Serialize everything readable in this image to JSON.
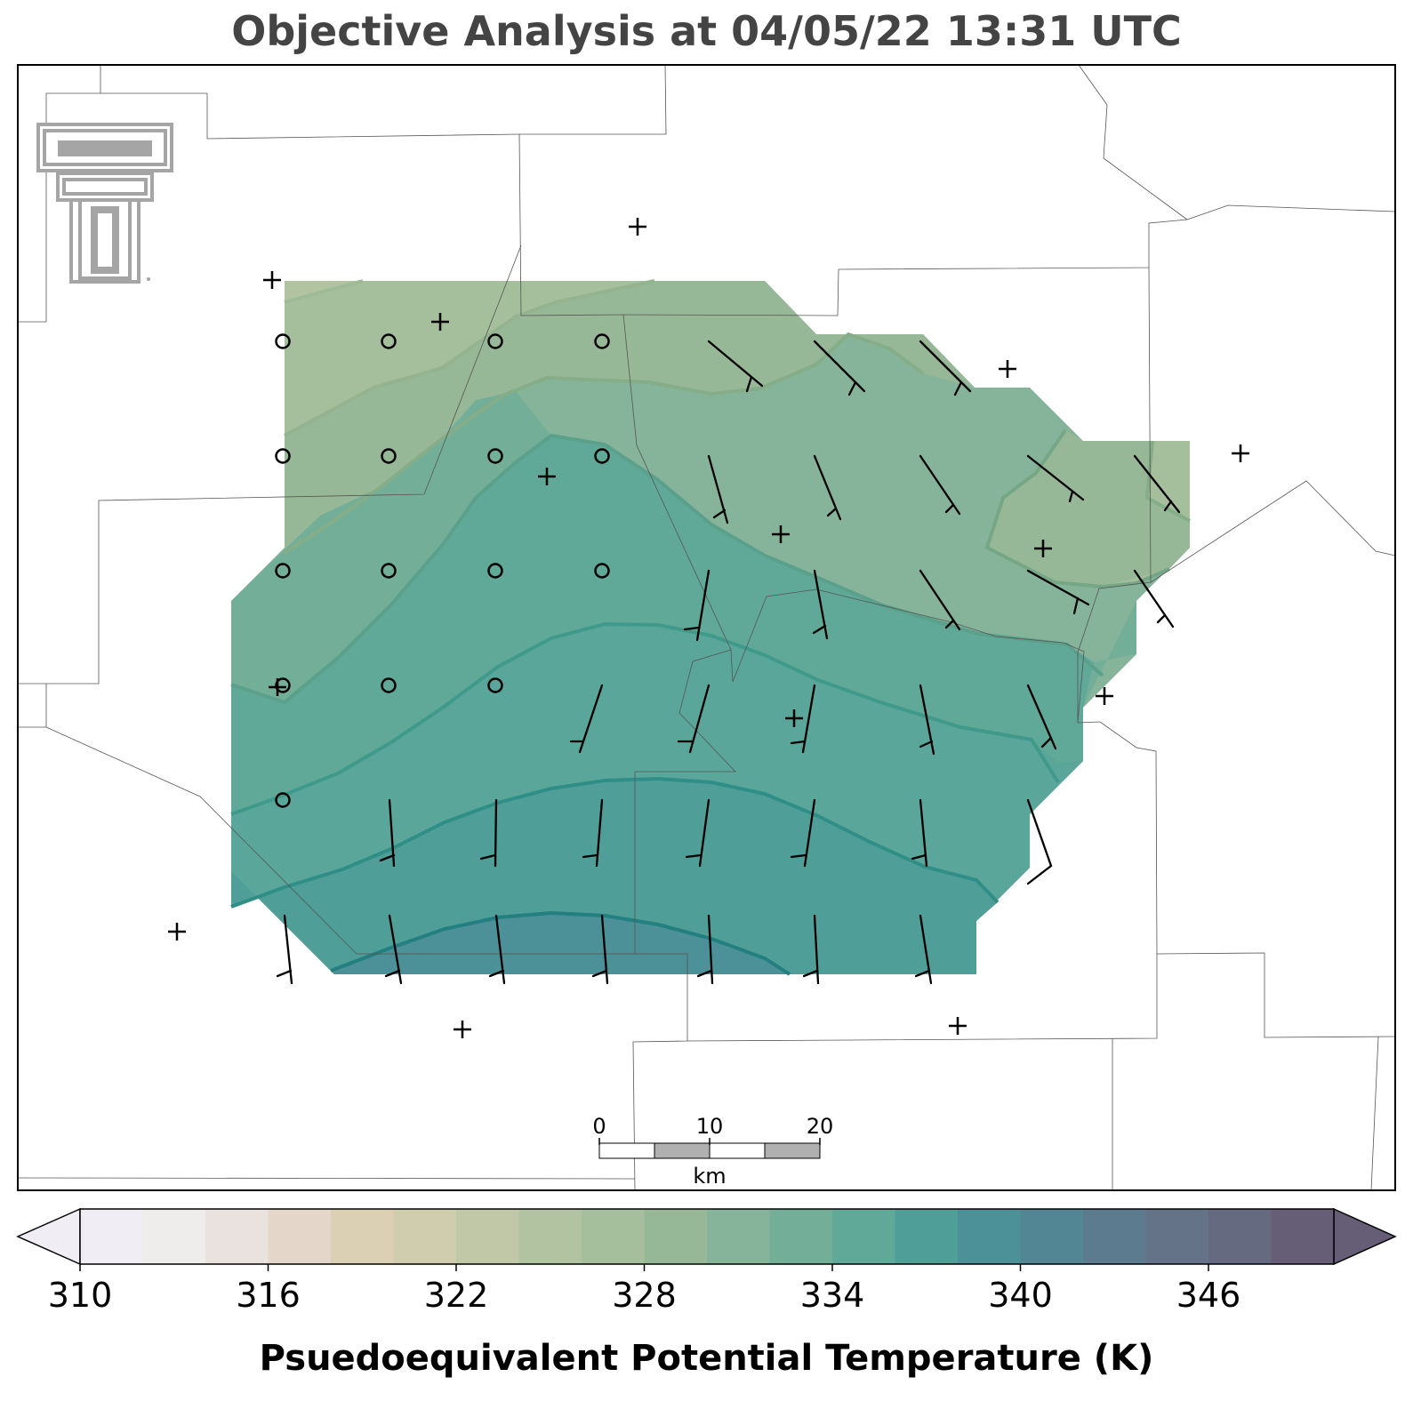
{
  "title": "Objective Analysis at 04/05/22 13:31 UTC",
  "colorbar": {
    "label": "Psuedoequivalent Potential Temperature (K)",
    "ticks": [
      "310",
      "316",
      "322",
      "328",
      "334",
      "340",
      "346"
    ],
    "min": 310,
    "max": 350,
    "step": 2,
    "extend": "both",
    "colors": [
      "#f0eef4",
      "#efecec",
      "#e9e2de",
      "#e4d6c8",
      "#dcd0b4",
      "#d0ccae",
      "#c0c8a8",
      "#b2c3a2",
      "#a5bf9c",
      "#97b896",
      "#86b49a",
      "#73af98",
      "#60a898",
      "#4f9e98",
      "#4b9197",
      "#528694",
      "#5c7b8e",
      "#657389",
      "#666a81",
      "#665e77"
    ]
  },
  "scalebar": {
    "labels": [
      "0",
      "10",
      "20"
    ],
    "unit": "km"
  },
  "logo": {
    "name": "texas-tech-double-t-logo"
  },
  "map_elements": {
    "county_lines": true,
    "missing_station_marker": "+",
    "calm_wind_marker": "circle"
  }
}
